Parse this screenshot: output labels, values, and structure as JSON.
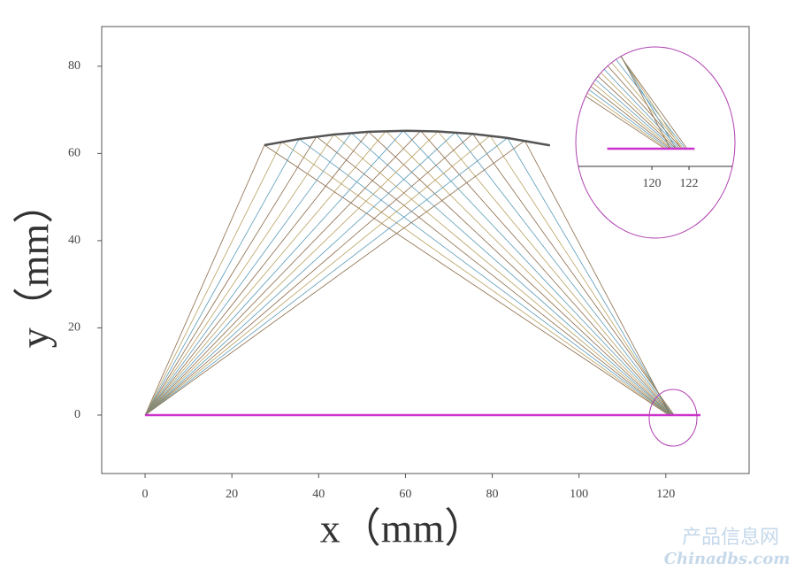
{
  "chart_data": [
    {
      "type": "ray",
      "xlabel": "x（mm）",
      "ylabel": "y（mm）",
      "xlim": [
        -10,
        139.2
      ],
      "ylim": [
        -13.4,
        89.1
      ],
      "xticks": [
        0,
        20,
        40,
        60,
        80,
        100,
        120
      ],
      "yticks": [
        0,
        20,
        40,
        60,
        80
      ],
      "mirror": {
        "color": "#555555",
        "x": [
          27.5,
          35.5,
          43.5,
          51.5,
          60.3,
          67.5,
          75.5,
          83.5,
          93.3
        ],
        "y": [
          61.9,
          63.31,
          64.33,
          64.96,
          65.2,
          65.04,
          64.49,
          63.55,
          61.86
        ]
      },
      "detector": {
        "color": "#cc33cc",
        "x": [
          0,
          128
        ],
        "y": [
          0,
          0
        ]
      },
      "rays": [
        {
          "color": "#8b6b4a",
          "x": [
            0,
            27.5,
            120.7
          ],
          "y": [
            0,
            61.9,
            0
          ]
        },
        {
          "color": "#b8a060",
          "x": [
            0,
            31.5,
            120.8
          ],
          "y": [
            0,
            62.65,
            0
          ]
        },
        {
          "color": "#5b9bb8",
          "x": [
            0,
            35.5,
            120.9
          ],
          "y": [
            0,
            63.31,
            0
          ]
        },
        {
          "color": "#8b6b4a",
          "x": [
            0,
            39.5,
            121.0
          ],
          "y": [
            0,
            63.87,
            0
          ]
        },
        {
          "color": "#b8a060",
          "x": [
            0,
            43.5,
            121.1
          ],
          "y": [
            0,
            64.33,
            0
          ]
        },
        {
          "color": "#5b9bb8",
          "x": [
            0,
            47.5,
            121.2
          ],
          "y": [
            0,
            64.7,
            0
          ]
        },
        {
          "color": "#8b6b4a",
          "x": [
            0,
            51.5,
            121.3
          ],
          "y": [
            0,
            64.96,
            0
          ]
        },
        {
          "color": "#b8a060",
          "x": [
            0,
            55.5,
            121.4
          ],
          "y": [
            0,
            65.13,
            0
          ]
        },
        {
          "color": "#5b9bb8",
          "x": [
            0,
            59.5,
            121.5
          ],
          "y": [
            0,
            65.2,
            0
          ]
        },
        {
          "color": "#8b6b4a",
          "x": [
            0,
            63.5,
            121.6
          ],
          "y": [
            0,
            65.17,
            0
          ]
        },
        {
          "color": "#b8a060",
          "x": [
            0,
            67.5,
            121.7
          ],
          "y": [
            0,
            65.04,
            0
          ]
        },
        {
          "color": "#5b9bb8",
          "x": [
            0,
            71.5,
            121.8
          ],
          "y": [
            0,
            64.82,
            0
          ]
        },
        {
          "color": "#8b6b4a",
          "x": [
            0,
            75.5,
            121.9
          ],
          "y": [
            0,
            64.49,
            0
          ]
        },
        {
          "color": "#b8a060",
          "x": [
            0,
            79.5,
            121.6
          ],
          "y": [
            0,
            64.07,
            0
          ]
        },
        {
          "color": "#5b9bb8",
          "x": [
            0,
            83.5,
            121.3
          ],
          "y": [
            0,
            63.55,
            0
          ]
        },
        {
          "color": "#8b6b4a",
          "x": [
            0,
            87.5,
            121.0
          ],
          "y": [
            0,
            62.93,
            0
          ]
        }
      ]
    },
    {
      "type": "inset",
      "xlim": [
        116.05,
        124.33
      ],
      "ylim": [
        -0.95,
        5.48
      ],
      "xticks": [
        120,
        122
      ],
      "detector": {
        "color": "#cc33cc",
        "x": [
          117.6,
          122.3
        ],
        "y": [
          0,
          0
        ]
      }
    }
  ],
  "watermark": {
    "name": "产品信息网",
    "site": "Chinadbs.com"
  }
}
